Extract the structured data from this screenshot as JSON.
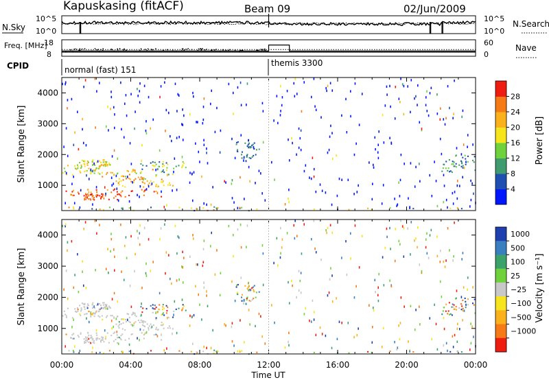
{
  "header": {
    "site": "Kapuskasing (fitACF)",
    "beam": "Beam 09",
    "date": "02/Jun/2009"
  },
  "chart_data": {
    "type": "heatmap",
    "x_axis": {
      "label": "Time UT",
      "range_hours": [
        0,
        24
      ],
      "ticks": [
        0,
        4,
        8,
        12,
        16,
        20,
        24
      ],
      "tick_labels": [
        "00:00",
        "04:00",
        "08:00",
        "12:00",
        "16:00",
        "20:00",
        "00:00"
      ]
    },
    "noise_panel": {
      "left_label": "N.Sky",
      "right_label": "N.Search",
      "left_ticks": [
        "10^5",
        "10^0"
      ],
      "right_ticks": [
        "10^5",
        "10^0"
      ],
      "nsky_hours": [
        0,
        0.05,
        1.05,
        1.1,
        12,
        21.35,
        21.4,
        22.05,
        22.1,
        24
      ]
    },
    "freq_panel": {
      "left_label": "Freq. [MHz]",
      "right_label": "Nave",
      "left_ticks": [
        "18",
        "8"
      ],
      "right_ticks": [
        "60",
        "0"
      ],
      "freq_mhz_level": 10.3,
      "nave_segments": [
        {
          "from": 0,
          "to": 12,
          "value": 18
        },
        {
          "from": 12,
          "to": 13.2,
          "value": 42
        },
        {
          "from": 13.2,
          "to": 24,
          "value": 18
        }
      ]
    },
    "cpid": {
      "label": "CPID",
      "segments": [
        {
          "from": 0,
          "to": 12,
          "name": "normal (fast) 151"
        },
        {
          "from": 12,
          "to": 24,
          "name": "themis 3300"
        }
      ]
    },
    "power_panel": {
      "ylabel": "Slant Range [km]",
      "yticks": [
        1000,
        2000,
        3000,
        4000
      ],
      "ylim": [
        180,
        4500
      ],
      "colorbar": {
        "label": "Power [dB]",
        "ticks": [
          "4",
          "8",
          "12",
          "16",
          "20",
          "24",
          "28"
        ],
        "colors": [
          "#0016ff",
          "#1f4fb0",
          "#3f9c6e",
          "#6fd23c",
          "#f6e41c",
          "#fbb11b",
          "#f67a16",
          "#ee1d0f"
        ]
      }
    },
    "velocity_panel": {
      "ylabel": "Slant Range [km]",
      "yticks": [
        1000,
        2000,
        3000,
        4000
      ],
      "ylim": [
        180,
        4500
      ],
      "colorbar": {
        "label": "Velocity [m s⁻¹]",
        "ticks": [
          "1000",
          "500",
          "100",
          "25",
          "−25",
          "−100",
          "−500",
          "−1000"
        ],
        "colors": [
          "#1e3fae",
          "#3a7fc0",
          "#3ba36a",
          "#6fd23c",
          "#c8c8c8",
          "#f6e41c",
          "#fbb11b",
          "#f67a16",
          "#ee1d0f"
        ]
      }
    },
    "echo_regions": [
      {
        "t0": 0.0,
        "t1": 2.5,
        "r0": 1350,
        "r1": 1700,
        "pow": [
          3,
          5
        ],
        "vel": "gray"
      },
      {
        "t0": 1.5,
        "t1": 5.5,
        "r0": 1200,
        "r1": 1550,
        "pow": [
          3,
          6
        ],
        "vel": "gray"
      },
      {
        "t0": 4.5,
        "t1": 7.2,
        "r0": 1350,
        "r1": 1800,
        "pow": [
          1,
          4
        ],
        "vel": "mixed"
      },
      {
        "t0": 0.2,
        "t1": 5.8,
        "r0": 650,
        "r1": 900,
        "pow": [
          5,
          7
        ],
        "vel": "gray"
      },
      {
        "t0": 1.0,
        "t1": 3.5,
        "r0": 550,
        "r1": 750,
        "pow": [
          6,
          7
        ],
        "vel": "gray"
      },
      {
        "t0": 3.0,
        "t1": 6.5,
        "r0": 950,
        "r1": 1250,
        "pow": [
          4,
          6
        ],
        "vel": "gray"
      },
      {
        "t0": 1.0,
        "t1": 2.8,
        "r0": 1650,
        "r1": 1850,
        "pow": [
          3,
          5
        ],
        "vel": "gray"
      },
      {
        "t0": 0.0,
        "t1": 24.0,
        "r0": 200,
        "r1": 320,
        "pow": [
          1,
          6
        ],
        "vel": "mixed"
      },
      {
        "t0": 22.0,
        "t1": 24.0,
        "r0": 1400,
        "r1": 2000,
        "pow": [
          1,
          3
        ],
        "vel": "mixed"
      },
      {
        "t0": 10.0,
        "t1": 11.5,
        "r0": 1800,
        "r1": 2500,
        "pow": [
          1,
          2
        ],
        "vel": "mixed"
      }
    ]
  }
}
